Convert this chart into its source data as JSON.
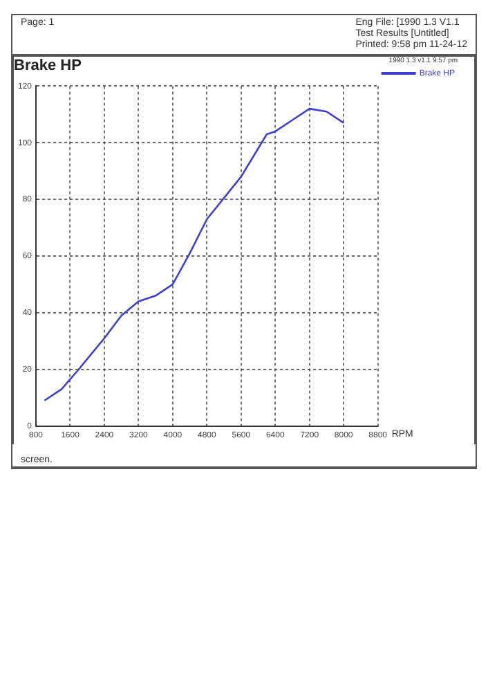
{
  "chart_data": {
    "type": "line",
    "title": "Brake HP",
    "xlabel": "RPM",
    "legend_title": "1990 1.3 v1.1 9:57 pm",
    "annotations": [
      "Page: 1",
      "Eng File: [1990 1.3 V1.1",
      "Test Results [Untitled]",
      "Printed: 9:58 pm 11-24-12",
      "screen."
    ],
    "x": [
      1000,
      1400,
      1800,
      2400,
      2800,
      3200,
      3600,
      4000,
      4400,
      4800,
      5600,
      6200,
      6400,
      6800,
      7200,
      7600,
      8000
    ],
    "series": [
      {
        "name": "Brake HP",
        "color": "#3f3fcf",
        "values": [
          9,
          13,
          20,
          31,
          39,
          44,
          46,
          50,
          61,
          73,
          88,
          103,
          104,
          108,
          112,
          111,
          107
        ]
      }
    ],
    "xlim": [
      800,
      8800
    ],
    "xticks": [
      800,
      1600,
      2400,
      3200,
      4000,
      4800,
      5600,
      6400,
      7200,
      8000,
      8800
    ],
    "ylim": [
      0,
      120
    ],
    "yticks": [
      0,
      20,
      40,
      60,
      80,
      100,
      120
    ],
    "grid": true,
    "legend": "top right",
    "marker": "none",
    "line_style": "solid"
  }
}
